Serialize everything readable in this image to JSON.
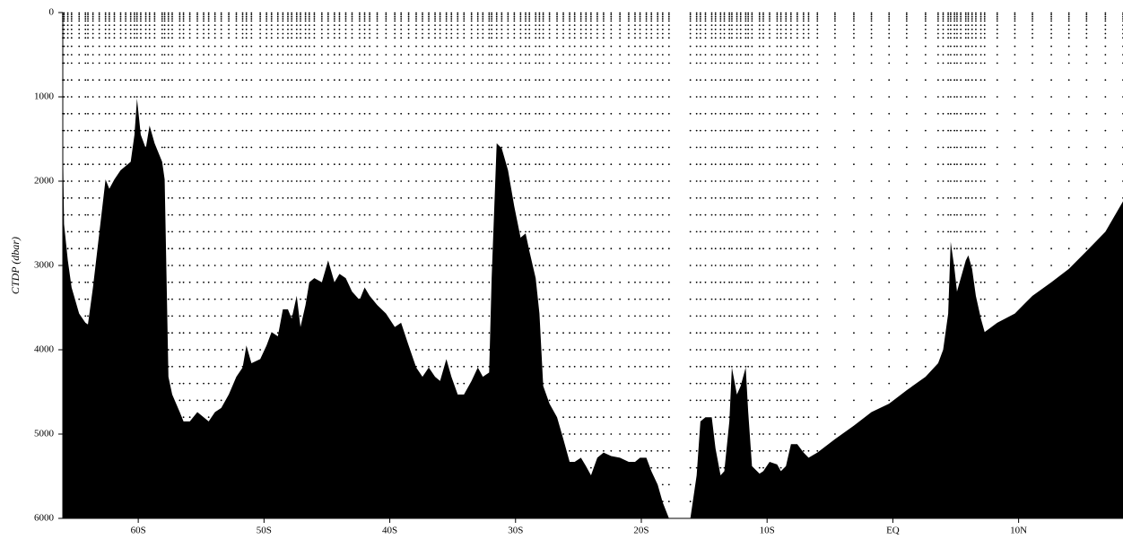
{
  "chart_data": {
    "type": "area",
    "ylabel": "CTDP (dbar)",
    "color": "#000000",
    "xlim": [
      -66,
      18.3
    ],
    "ylim": [
      0,
      6000
    ],
    "y_inverted": true,
    "xticks": [
      {
        "value": -60,
        "label": "60S"
      },
      {
        "value": -50,
        "label": "50S"
      },
      {
        "value": -40,
        "label": "40S"
      },
      {
        "value": -30,
        "label": "30S"
      },
      {
        "value": -20,
        "label": "20S"
      },
      {
        "value": -10,
        "label": "10S"
      },
      {
        "value": 0,
        "label": "EQ"
      },
      {
        "value": 10,
        "label": "10N"
      }
    ],
    "yticks": [
      0,
      1000,
      2000,
      3000,
      4000,
      5000,
      6000
    ],
    "x": [
      -66.0,
      -65.9,
      -65.6,
      -65.3,
      -64.7,
      -64.2,
      -64.0,
      -63.6,
      -63.1,
      -62.6,
      -62.3,
      -61.9,
      -61.4,
      -61.0,
      -60.6,
      -60.3,
      -60.1,
      -59.8,
      -59.4,
      -59.1,
      -58.7,
      -58.1,
      -57.9,
      -57.6,
      -57.3,
      -56.7,
      -56.4,
      -55.9,
      -55.3,
      -54.8,
      -54.4,
      -53.9,
      -53.4,
      -52.8,
      -52.2,
      -51.7,
      -51.4,
      -51.0,
      -50.3,
      -49.8,
      -49.4,
      -48.9,
      -48.5,
      -48.1,
      -47.8,
      -47.4,
      -47.1,
      -46.7,
      -46.4,
      -46.0,
      -45.4,
      -44.9,
      -44.4,
      -44.0,
      -43.5,
      -43.0,
      -42.4,
      -42.0,
      -41.6,
      -41.0,
      -40.3,
      -39.6,
      -39.1,
      -38.5,
      -37.9,
      -37.4,
      -36.9,
      -36.4,
      -36.0,
      -35.5,
      -35.1,
      -34.6,
      -34.1,
      -33.5,
      -33.0,
      -32.6,
      -32.1,
      -31.9,
      -31.5,
      -31.1,
      -30.6,
      -30.1,
      -29.6,
      -29.2,
      -28.9,
      -28.4,
      -28.1,
      -27.8,
      -27.3,
      -26.7,
      -26.2,
      -25.7,
      -25.3,
      -24.8,
      -24.4,
      -24.0,
      -23.5,
      -23.0,
      -22.4,
      -21.7,
      -21.0,
      -20.5,
      -20.1,
      -19.6,
      -19.2,
      -18.7,
      -18.3,
      -17.8,
      -16.1,
      -15.6,
      -15.3,
      -14.9,
      -14.4,
      -14.1,
      -13.7,
      -13.4,
      -13.0,
      -12.8,
      -12.4,
      -12.1,
      -11.7,
      -11.5,
      -11.2,
      -10.6,
      -10.3,
      -9.8,
      -9.2,
      -8.9,
      -8.5,
      -8.1,
      -7.6,
      -7.1,
      -6.7,
      -6.0,
      -4.6,
      -3.1,
      -1.7,
      -0.3,
      1.1,
      2.6,
      3.6,
      4.0,
      4.4,
      4.6,
      4.9,
      5.1,
      5.4,
      5.8,
      6.0,
      6.3,
      6.6,
      7.0,
      7.3,
      8.3,
      9.7,
      11.1,
      12.6,
      14.0,
      15.4,
      16.9,
      18.3
    ],
    "values": [
      1450,
      2510,
      2940,
      3260,
      3570,
      3680,
      3700,
      3260,
      2620,
      1980,
      2090,
      1980,
      1870,
      1820,
      1770,
      1450,
      1020,
      1450,
      1610,
      1340,
      1550,
      1770,
      1980,
      4320,
      4530,
      4740,
      4850,
      4850,
      4740,
      4800,
      4850,
      4740,
      4690,
      4530,
      4320,
      4210,
      3950,
      4160,
      4110,
      3950,
      3790,
      3840,
      3520,
      3520,
      3630,
      3360,
      3730,
      3470,
      3200,
      3150,
      3200,
      2940,
      3200,
      3100,
      3150,
      3310,
      3410,
      3260,
      3360,
      3470,
      3570,
      3730,
      3680,
      3950,
      4210,
      4320,
      4210,
      4320,
      4370,
      4110,
      4320,
      4530,
      4530,
      4370,
      4210,
      4320,
      4270,
      3150,
      1550,
      1610,
      1870,
      2300,
      2670,
      2620,
      2830,
      3150,
      3570,
      4430,
      4640,
      4800,
      5060,
      5330,
      5330,
      5280,
      5380,
      5490,
      5280,
      5220,
      5260,
      5280,
      5330,
      5330,
      5280,
      5280,
      5440,
      5600,
      5810,
      6000,
      6000,
      5490,
      4850,
      4800,
      4800,
      5170,
      5490,
      5440,
      4850,
      4210,
      4530,
      4430,
      4210,
      4740,
      5380,
      5470,
      5440,
      5330,
      5360,
      5440,
      5380,
      5120,
      5120,
      5220,
      5280,
      5220,
      5060,
      4900,
      4740,
      4640,
      4480,
      4320,
      4160,
      4000,
      3570,
      2720,
      3040,
      3310,
      3150,
      2940,
      2880,
      3040,
      3360,
      3630,
      3790,
      3680,
      3570,
      3360,
      3200,
      3040,
      2830,
      2600,
      2240
    ],
    "sample_depths": [
      5,
      25,
      50,
      75,
      100,
      150,
      200,
      250,
      300,
      400,
      500,
      600,
      800,
      1000,
      1200,
      1400,
      1600,
      1800,
      2000,
      2200,
      2400,
      2600,
      2800,
      3000,
      3200,
      3400,
      3600,
      3800,
      4000,
      4200,
      4400,
      4600,
      4800,
      5000,
      5200,
      5400,
      5600,
      5800
    ]
  }
}
